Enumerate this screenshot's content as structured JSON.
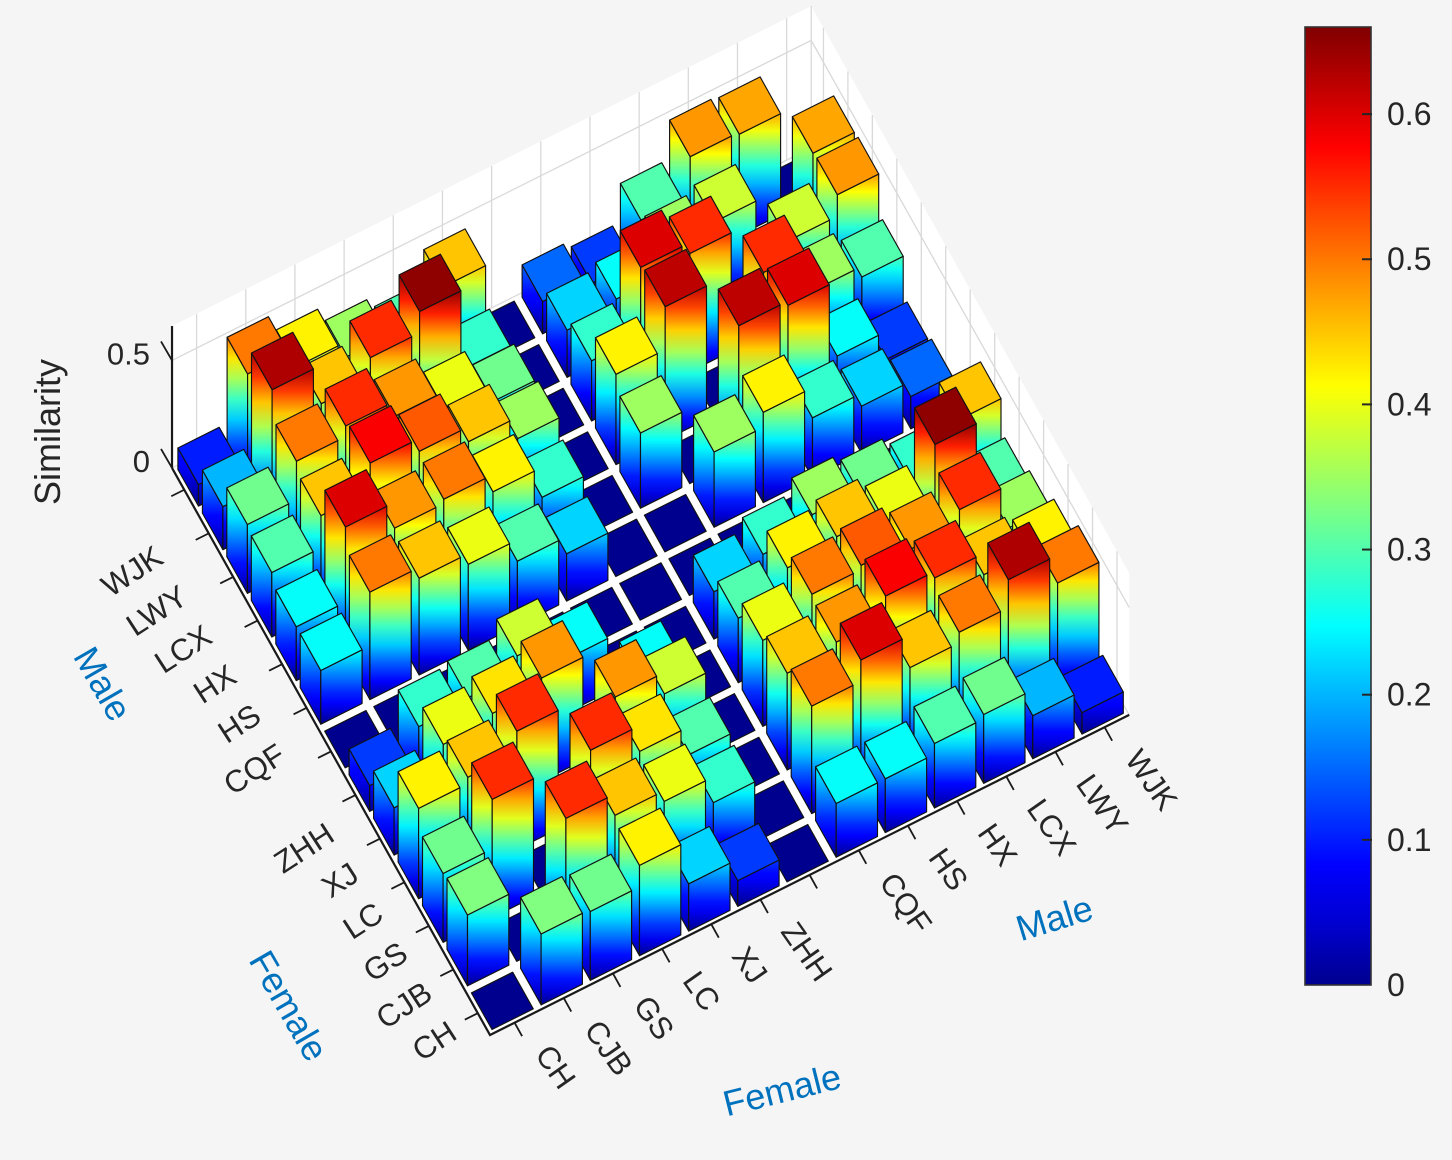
{
  "figure": {
    "background": "#f5f5f6",
    "axes_background": "#ffffff",
    "grid_color": "#d9d9d9",
    "axis_line_color": "#1a1a1a",
    "tick_label_color": "#262626"
  },
  "chart_data": {
    "type": "bar3d",
    "title": "",
    "zlabel": "Similarity",
    "z_axis": {
      "ticks": [
        0,
        0.5
      ],
      "tick_labels": [
        "0",
        "0.5"
      ]
    },
    "color_axis": {
      "min": 0,
      "max": 0.66,
      "colormap": "jet"
    },
    "colorbar": {
      "ticks": [
        0,
        0.1,
        0.2,
        0.3,
        0.4,
        0.5,
        0.6
      ],
      "tick_labels": [
        "0",
        "0.1",
        "0.2",
        "0.3",
        "0.4",
        "0.5",
        "0.6"
      ]
    },
    "groups": [
      {
        "label": "Female",
        "members": [
          "CH",
          "CJB",
          "GS",
          "LC",
          "XJ",
          "ZHH"
        ]
      },
      {
        "label": "Male",
        "members": [
          "CQF",
          "HS",
          "HX",
          "LCX",
          "LWY",
          "WJK"
        ]
      }
    ],
    "group_label_color": "#0072bd",
    "axis_order": [
      "CH",
      "CJB",
      "GS",
      "LC",
      "XJ",
      "ZHH",
      "",
      "CQF",
      "HS",
      "HX",
      "LCX",
      "LWY",
      "WJK"
    ],
    "separator_index": 6,
    "matrix": [
      [
        0.0,
        0.33,
        0.32,
        0.42,
        0.22,
        0.12,
        0,
        0.25,
        0.25,
        0.3,
        0.32,
        0.2,
        0.1
      ],
      [
        0.33,
        0.0,
        0.55,
        0.45,
        0.4,
        0.28,
        0,
        0.5,
        0.6,
        0.45,
        0.5,
        0.63,
        0.5
      ],
      [
        0.32,
        0.55,
        0.0,
        0.55,
        0.43,
        0.3,
        0,
        0.45,
        0.48,
        0.58,
        0.55,
        0.45,
        0.42
      ],
      [
        0.42,
        0.45,
        0.55,
        0.0,
        0.48,
        0.38,
        0,
        0.4,
        0.5,
        0.52,
        0.48,
        0.55,
        0.35
      ],
      [
        0.22,
        0.4,
        0.43,
        0.48,
        0.0,
        0.25,
        0,
        0.3,
        0.42,
        0.45,
        0.4,
        0.65,
        0.3
      ],
      [
        0.12,
        0.28,
        0.3,
        0.38,
        0.25,
        0.0,
        0,
        0.22,
        0.28,
        0.35,
        0.32,
        0.28,
        0.45
      ],
      [
        0,
        0,
        0,
        0,
        0,
        0,
        0,
        0,
        0,
        0,
        0,
        0,
        0
      ],
      [
        0.25,
        0.5,
        0.45,
        0.4,
        0.3,
        0.22,
        0,
        0.0,
        0.35,
        0.42,
        0.28,
        0.22,
        0.15
      ],
      [
        0.25,
        0.6,
        0.48,
        0.5,
        0.42,
        0.28,
        0,
        0.35,
        0.0,
        0.62,
        0.6,
        0.25,
        0.12
      ],
      [
        0.3,
        0.45,
        0.58,
        0.52,
        0.45,
        0.35,
        0,
        0.42,
        0.62,
        0.0,
        0.55,
        0.35,
        0.3
      ],
      [
        0.32,
        0.5,
        0.55,
        0.48,
        0.4,
        0.32,
        0,
        0.28,
        0.6,
        0.55,
        0.0,
        0.38,
        0.48
      ],
      [
        0.2,
        0.63,
        0.45,
        0.55,
        0.65,
        0.28,
        0,
        0.22,
        0.25,
        0.35,
        0.38,
        0.0,
        0.47
      ],
      [
        0.1,
        0.5,
        0.42,
        0.35,
        0.3,
        0.45,
        0,
        0.15,
        0.12,
        0.3,
        0.48,
        0.47,
        0.0
      ]
    ],
    "bar_edge_color": "#121212",
    "layout": {
      "legend": "none",
      "grid": true,
      "axis_label_positions": [
        "male-left",
        "female-left",
        "female-bottom",
        "male-right"
      ]
    }
  }
}
